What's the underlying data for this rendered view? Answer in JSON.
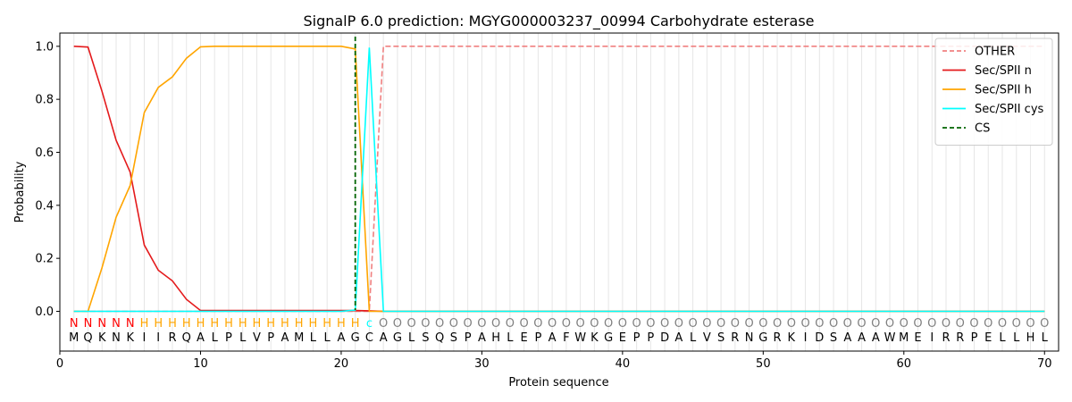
{
  "chart_data": {
    "type": "line",
    "title": "SignalP 6.0 prediction: MGYG000003237_00994 Carbohydrate esterase",
    "xlabel": "Protein sequence",
    "ylabel": "Probability",
    "xlim": [
      0,
      71
    ],
    "ylim": [
      -0.15,
      1.05
    ],
    "xticks": [
      0,
      10,
      20,
      30,
      40,
      50,
      60,
      70
    ],
    "yticks": [
      0.0,
      0.2,
      0.4,
      0.6,
      0.8,
      1.0
    ],
    "ytick_labels": [
      "0.0",
      "0.2",
      "0.4",
      "0.6",
      "0.8",
      "1.0"
    ],
    "legend_position": "top-right",
    "sequence": [
      "M",
      "Q",
      "K",
      "N",
      "K",
      "I",
      "I",
      "R",
      "Q",
      "A",
      "L",
      "P",
      "L",
      "V",
      "P",
      "A",
      "M",
      "L",
      "L",
      "A",
      "G",
      "C",
      "A",
      "G",
      "L",
      "S",
      "Q",
      "S",
      "P",
      "A",
      "H",
      "L",
      "E",
      "P",
      "A",
      "F",
      "W",
      "K",
      "G",
      "E",
      "P",
      "P",
      "D",
      "A",
      "L",
      "V",
      "S",
      "R",
      "N",
      "G",
      "R",
      "K",
      "I",
      "D",
      "S",
      "A",
      "A",
      "A",
      "W",
      "M",
      "E",
      "I",
      "R",
      "R",
      "P",
      "E",
      "L",
      "L",
      "H",
      "L"
    ],
    "labels": [
      "N",
      "N",
      "N",
      "N",
      "N",
      "H",
      "H",
      "H",
      "H",
      "H",
      "H",
      "H",
      "H",
      "H",
      "H",
      "H",
      "H",
      "H",
      "H",
      "H",
      "H",
      "c",
      "O",
      "O",
      "O",
      "O",
      "O",
      "O",
      "O",
      "O",
      "O",
      "O",
      "O",
      "O",
      "O",
      "O",
      "O",
      "O",
      "O",
      "O",
      "O",
      "O",
      "O",
      "O",
      "O",
      "O",
      "O",
      "O",
      "O",
      "O",
      "O",
      "O",
      "O",
      "O",
      "O",
      "O",
      "O",
      "O",
      "O",
      "O",
      "O",
      "O",
      "O",
      "O",
      "O",
      "O",
      "O",
      "O",
      "O",
      "O"
    ],
    "label_colors": {
      "N": "#ff0000",
      "H": "#ffa500",
      "c": "#00ffff",
      "O": "#808080"
    },
    "series": [
      {
        "name": "OTHER",
        "color": "#f08080",
        "dashed": true,
        "x": [
          1,
          22,
          23,
          70
        ],
        "y": [
          0,
          0,
          1,
          1
        ]
      },
      {
        "name": "Sec/SPII n",
        "color": "#e41a1c",
        "dashed": false,
        "x": [
          1,
          2,
          3,
          4,
          5,
          6,
          7,
          8,
          9,
          10,
          21,
          22,
          23,
          70
        ],
        "y": [
          1.0,
          0.997,
          0.83,
          0.645,
          0.525,
          0.25,
          0.155,
          0.115,
          0.045,
          0.003,
          0.003,
          0.002,
          0,
          0
        ]
      },
      {
        "name": "Sec/SPII h",
        "color": "#ffa500",
        "dashed": false,
        "x": [
          1,
          2,
          3,
          4,
          5,
          6,
          7,
          8,
          9,
          10,
          11,
          20,
          21,
          22,
          23,
          70
        ],
        "y": [
          0,
          0,
          0.165,
          0.355,
          0.475,
          0.75,
          0.845,
          0.885,
          0.955,
          0.998,
          1.0,
          1.0,
          0.99,
          0,
          0,
          0
        ]
      },
      {
        "name": "Sec/SPII cys",
        "color": "#00ffff",
        "dashed": false,
        "x": [
          1,
          20,
          21,
          22,
          23,
          70
        ],
        "y": [
          0,
          0,
          0.005,
          0.995,
          0,
          0
        ]
      }
    ],
    "cleavage_site": {
      "name": "CS",
      "x": 21,
      "color": "#006400"
    }
  }
}
